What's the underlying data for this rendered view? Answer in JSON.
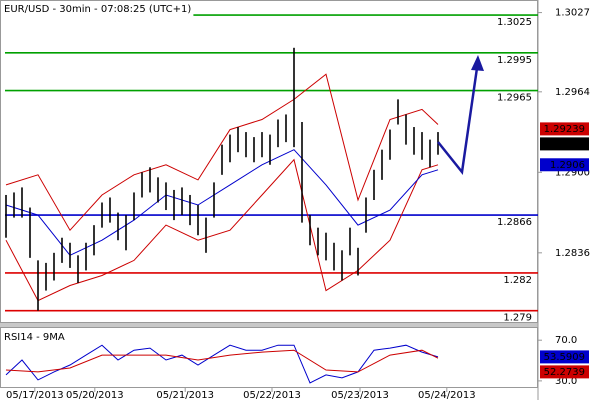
{
  "chart_data": [
    {
      "type": "ohlc",
      "title": "EUR/USD - 30min - 07:08:25 (UTC+1)",
      "color": "#000000",
      "xlim": [
        -0.75,
        66.5
      ],
      "ylim": [
        1.2781,
        1.3037
      ],
      "yticks": [
        1.3027,
        1.2964,
        {
          "value": 1.29,
          "label": "1.2900"
        },
        1.2836
      ],
      "x": [
        0,
        1,
        2,
        3,
        4,
        5,
        6,
        7,
        8,
        9,
        10,
        11,
        12,
        13,
        14,
        15,
        16,
        17,
        18,
        19,
        20,
        21,
        22,
        23,
        24,
        25,
        26,
        27,
        28,
        29,
        30,
        31,
        32,
        33,
        34,
        35,
        36,
        37,
        38,
        39,
        40,
        41,
        42,
        43,
        44,
        45,
        46,
        47,
        48,
        49,
        50,
        51,
        52,
        53,
        54
      ],
      "high": [
        1.2882,
        1.2884,
        1.2888,
        1.2872,
        1.283,
        1.2828,
        1.2836,
        1.2848,
        1.2844,
        1.2834,
        1.2844,
        1.2858,
        1.2876,
        1.288,
        1.2868,
        1.2866,
        1.2884,
        1.29,
        1.2904,
        1.2896,
        1.2892,
        1.2886,
        1.2888,
        1.2882,
        1.2874,
        1.2864,
        1.2892,
        1.2922,
        1.293,
        1.2936,
        1.2932,
        1.2928,
        1.2932,
        1.293,
        1.2942,
        1.2946,
        1.2999,
        1.294,
        1.2866,
        1.2856,
        1.2852,
        1.2844,
        1.2838,
        1.2856,
        1.284,
        1.288,
        1.2902,
        1.2918,
        1.2934,
        1.2958,
        1.2946,
        1.2936,
        1.2932,
        1.2926,
        1.2932
      ],
      "low": [
        1.2848,
        1.2864,
        1.2864,
        1.2832,
        1.279,
        1.2806,
        1.2814,
        1.2828,
        1.2824,
        1.2812,
        1.2822,
        1.2834,
        1.2856,
        1.286,
        1.2846,
        1.2838,
        1.2862,
        1.288,
        1.2884,
        1.2876,
        1.287,
        1.2862,
        1.2866,
        1.2858,
        1.285,
        1.2836,
        1.2864,
        1.2898,
        1.2908,
        1.2916,
        1.2912,
        1.2908,
        1.2912,
        1.2906,
        1.292,
        1.2924,
        1.292,
        1.286,
        1.2842,
        1.2834,
        1.283,
        1.2822,
        1.2814,
        1.2834,
        1.2818,
        1.2852,
        1.2878,
        1.2894,
        1.291,
        1.2938,
        1.2922,
        1.2914,
        1.291,
        1.2904,
        1.2914
      ],
      "overlays": [
        {
          "color": "#cc0000",
          "x": [
            0,
            4,
            8,
            12,
            16,
            20,
            24,
            28,
            32,
            36,
            40,
            44,
            48,
            52,
            54
          ],
          "values": [
            1.289,
            1.2898,
            1.2854,
            1.2882,
            1.2898,
            1.2906,
            1.2894,
            1.2934,
            1.2942,
            1.2958,
            1.2978,
            1.2878,
            1.2942,
            1.295,
            1.2938
          ]
        },
        {
          "color": "#cc0000",
          "x": [
            0,
            4,
            8,
            12,
            16,
            20,
            24,
            28,
            32,
            36,
            40,
            44,
            48,
            52,
            54
          ],
          "values": [
            1.2846,
            1.2798,
            1.281,
            1.2818,
            1.283,
            1.2858,
            1.2846,
            1.2854,
            1.2882,
            1.291,
            1.2806,
            1.2822,
            1.2846,
            1.2902,
            1.2906
          ]
        },
        {
          "color": "#0000cc",
          "x": [
            0,
            4,
            8,
            12,
            16,
            20,
            24,
            28,
            32,
            36,
            40,
            44,
            48,
            52,
            54
          ],
          "values": [
            1.2874,
            1.2866,
            1.2834,
            1.2846,
            1.2862,
            1.2882,
            1.2874,
            1.289,
            1.2906,
            1.2918,
            1.289,
            1.2858,
            1.287,
            1.2898,
            1.2902
          ]
        }
      ],
      "levels": [
        {
          "value": 1.3025,
          "color": "#00a000"
        },
        {
          "value": 1.2995,
          "color": "#00a000"
        },
        {
          "value": 1.2965,
          "color": "#00a000"
        },
        {
          "value": 1.2866,
          "color": "#0000cc"
        },
        {
          "value": 1.282,
          "color": "#dd0000"
        },
        {
          "value": 1.279,
          "color": "#dd0000"
        }
      ],
      "last_values": [
        {
          "value": 1.29239,
          "color": "#cc0000"
        },
        {
          "value": 1.29226,
          "color": "#000000"
        },
        {
          "value": 1.2906,
          "color": "#0000cc"
        }
      ]
    },
    {
      "type": "line",
      "title": "RSI14 - 9MA",
      "xlim": [
        -0.75,
        66.5
      ],
      "ylim": [
        23,
        82
      ],
      "yticks": [
        {
          "value": 70,
          "label": "70.0"
        },
        {
          "value": 30,
          "label": "30.0"
        }
      ],
      "xticks": [
        {
          "value": 3.6,
          "label": "05/17/2013"
        },
        {
          "value": 11.1,
          "label": "05/20/2013"
        },
        {
          "value": 22.4,
          "label": "05/21/2013"
        },
        {
          "value": 33.25,
          "label": "05/22/2013"
        },
        {
          "value": 44.25,
          "label": "05/23/2013"
        },
        {
          "value": 55.1,
          "label": "05/24/2013"
        }
      ],
      "series": [
        {
          "color": "#0000cc",
          "x": [
            0,
            2,
            4,
            6,
            8,
            10,
            12,
            14,
            16,
            18,
            20,
            22,
            24,
            26,
            28,
            30,
            32,
            34,
            36,
            38,
            40,
            42,
            44,
            46,
            48,
            50,
            52,
            54
          ],
          "values": [
            35.9,
            50.5,
            31,
            38.8,
            45.6,
            55.4,
            65.1,
            50.5,
            60.2,
            62.2,
            50.5,
            55.4,
            45.6,
            55.4,
            65.1,
            60.2,
            60.2,
            65.1,
            65.1,
            28,
            35.9,
            32.9,
            38.8,
            60.2,
            62.2,
            65.1,
            58.3,
            53.6
          ]
        },
        {
          "color": "#cc0000",
          "x": [
            0,
            4,
            8,
            12,
            16,
            20,
            24,
            28,
            32,
            36,
            40,
            44,
            48,
            52,
            54
          ],
          "values": [
            40.7,
            38.8,
            42.7,
            55.4,
            55.4,
            55.4,
            50.5,
            55.4,
            58.3,
            60.2,
            40.7,
            38.8,
            55.4,
            60.2,
            52.3
          ]
        }
      ],
      "last_values": [
        {
          "value": 53.5909,
          "color": "#0000cc"
        },
        {
          "value": 52.2739,
          "color": "#cc0000"
        }
      ]
    }
  ]
}
